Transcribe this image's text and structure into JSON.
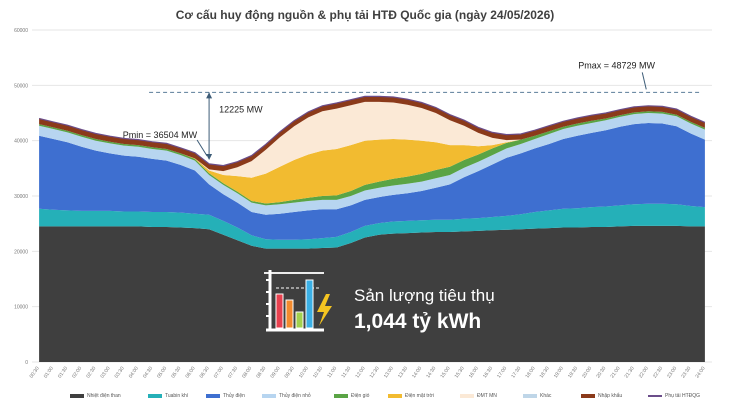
{
  "title": "Cơ cấu huy động nguồn & phụ tải HTĐ Quốc gia (ngày 24/05/2026)",
  "consumption": {
    "label": "Sản lượng tiêu thụ",
    "value": "1,044 tỷ kWh"
  },
  "annotations": {
    "pmin": "Pmin = 36504 MW",
    "pmax": "Pmax = 48729 MW",
    "delta": "12225 MW"
  },
  "colors": {
    "coal": "#3f3f3f",
    "gas": "#25b0b8",
    "hydro": "#3e6fd0",
    "small_hydro": "#b7d5f0",
    "wind": "#5aa445",
    "solar_farm": "#f2bb30",
    "rooftop_solar": "#fbe9d6",
    "other": "#bfd6e8",
    "import": "#8b3a1a",
    "load_line": "#6b4d8a"
  },
  "chart_data": {
    "type": "area",
    "stacked": true,
    "title": "Cơ cấu huy động nguồn & phụ tải HTĐ Quốc gia (ngày 24/05/2026)",
    "xlabel": "",
    "ylabel": "",
    "ylim": [
      0,
      60000
    ],
    "yticks": [
      0,
      10000,
      20000,
      30000,
      40000,
      50000,
      60000
    ],
    "grid": true,
    "legend_position": "bottom",
    "x": [
      "00:30",
      "01:00",
      "01:30",
      "02:00",
      "02:30",
      "03:00",
      "03:30",
      "04:00",
      "04:30",
      "05:00",
      "05:30",
      "06:00",
      "06:30",
      "07:00",
      "07:30",
      "08:00",
      "08:30",
      "09:00",
      "09:30",
      "10:00",
      "10:30",
      "11:00",
      "11:30",
      "12:00",
      "12:30",
      "13:00",
      "13:30",
      "14:00",
      "14:30",
      "15:00",
      "15:30",
      "16:00",
      "16:30",
      "17:00",
      "17:30",
      "18:00",
      "18:30",
      "19:00",
      "19:30",
      "20:00",
      "20:30",
      "21:00",
      "21:30",
      "22:00",
      "22:30",
      "23:00",
      "23:30",
      "24:00"
    ],
    "series": [
      {
        "name": "Nhiệt điện than",
        "color_key": "coal",
        "values": [
          24500,
          24500,
          24500,
          24500,
          24500,
          24500,
          24500,
          24500,
          24400,
          24400,
          24300,
          24200,
          24000,
          23000,
          22000,
          21000,
          20500,
          20500,
          20500,
          20500,
          20600,
          20700,
          21500,
          22500,
          23000,
          23200,
          23300,
          23400,
          23500,
          23500,
          23600,
          23700,
          23800,
          23900,
          24000,
          24100,
          24200,
          24300,
          24300,
          24400,
          24400,
          24500,
          24600,
          24600,
          24600,
          24600,
          24500,
          24500
        ]
      },
      {
        "name": "Tuabin khí",
        "color_key": "gas",
        "values": [
          3200,
          3000,
          2900,
          2800,
          2800,
          2800,
          2700,
          2700,
          2700,
          2700,
          2700,
          2600,
          2600,
          2500,
          2300,
          1900,
          1700,
          1600,
          1600,
          1700,
          1800,
          1900,
          2000,
          2100,
          2100,
          2200,
          2200,
          2200,
          2200,
          2200,
          2300,
          2300,
          2400,
          2500,
          2700,
          3000,
          3200,
          3400,
          3500,
          3600,
          3700,
          3800,
          3900,
          4000,
          4000,
          3900,
          3700,
          3500
        ]
      },
      {
        "name": "Thủy điện",
        "color_key": "hydro",
        "values": [
          13200,
          12800,
          12300,
          11600,
          10900,
          10400,
          10100,
          9900,
          9600,
          9300,
          8600,
          7800,
          5500,
          4800,
          4500,
          4200,
          4400,
          4700,
          5000,
          5200,
          5200,
          5000,
          4800,
          4700,
          4700,
          4800,
          5000,
          5300,
          5800,
          6400,
          7500,
          8500,
          9500,
          10500,
          11000,
          11500,
          12000,
          12600,
          13100,
          13400,
          13800,
          14200,
          14500,
          14600,
          14500,
          14100,
          13100,
          12200
        ]
      },
      {
        "name": "Thủy điện nhỏ",
        "color_key": "small_hydro",
        "values": [
          1800,
          1800,
          1800,
          1800,
          1800,
          1800,
          1800,
          1800,
          1800,
          1800,
          1800,
          1800,
          1700,
          1700,
          1700,
          1700,
          1700,
          1700,
          1700,
          1700,
          1700,
          1700,
          1700,
          1700,
          1700,
          1700,
          1700,
          1700,
          1700,
          1700,
          1700,
          1700,
          1700,
          1700,
          1700,
          1700,
          1800,
          1800,
          1800,
          1800,
          1800,
          1800,
          1800,
          1800,
          1800,
          1800,
          1800,
          1800
        ]
      },
      {
        "name": "Điện gió",
        "color_key": "wind",
        "values": [
          300,
          300,
          300,
          300,
          300,
          300,
          300,
          300,
          300,
          300,
          300,
          300,
          300,
          300,
          300,
          300,
          350,
          400,
          500,
          600,
          700,
          800,
          900,
          1000,
          1100,
          1200,
          1300,
          1400,
          1500,
          1500,
          1400,
          1300,
          1200,
          1000,
          800,
          600,
          500,
          400,
          400,
          400,
          300,
          300,
          300,
          300,
          300,
          300,
          300,
          300
        ]
      },
      {
        "name": "Điện mặt trời",
        "color_key": "solar_farm",
        "values": [
          0,
          0,
          0,
          0,
          0,
          0,
          0,
          0,
          0,
          0,
          0,
          100,
          500,
          1500,
          2800,
          4200,
          5400,
          6400,
          7200,
          7800,
          8200,
          8400,
          8300,
          8000,
          7600,
          7200,
          6700,
          6000,
          5000,
          3900,
          2700,
          1500,
          600,
          100,
          0,
          0,
          0,
          0,
          0,
          0,
          0,
          0,
          0,
          0,
          0,
          0,
          0,
          0
        ]
      },
      {
        "name": "ĐMT MN",
        "color_key": "rooftop_solar",
        "values": [
          0,
          0,
          0,
          0,
          0,
          0,
          0,
          0,
          0,
          0,
          0,
          0,
          200,
          700,
          1600,
          3000,
          4300,
          5300,
          6100,
          6700,
          7100,
          7300,
          7200,
          7000,
          6800,
          6600,
          6300,
          5900,
          5300,
          4500,
          3500,
          2400,
          1300,
          400,
          0,
          0,
          0,
          0,
          0,
          0,
          0,
          0,
          0,
          0,
          0,
          0,
          0,
          0
        ]
      },
      {
        "name": "Khác",
        "color_key": "other",
        "values": [
          0,
          0,
          0,
          0,
          0,
          0,
          0,
          0,
          0,
          0,
          0,
          0,
          0,
          0,
          0,
          0,
          0,
          0,
          0,
          0,
          0,
          0,
          0,
          0,
          0,
          0,
          0,
          0,
          0,
          0,
          0,
          0,
          0,
          0,
          0,
          0,
          0,
          0,
          0,
          0,
          0,
          0,
          0,
          0,
          0,
          0,
          0,
          0
        ]
      },
      {
        "name": "Nhập khẩu",
        "color_key": "import",
        "values": [
          1000,
          1000,
          1000,
          1000,
          1000,
          1000,
          1000,
          1000,
          1000,
          1000,
          1000,
          1000,
          1000,
          1000,
          1000,
          1000,
          1000,
          1000,
          1000,
          1000,
          1000,
          1000,
          1000,
          1000,
          1000,
          1000,
          1000,
          1000,
          1000,
          1000,
          1000,
          1000,
          1000,
          1000,
          1000,
          1000,
          1000,
          1000,
          1000,
          1000,
          1000,
          1000,
          1000,
          1000,
          1000,
          1000,
          1000,
          1000
        ]
      }
    ],
    "line_series": [
      {
        "name": "Phụ tải HTĐQG",
        "color_key": "load_line"
      }
    ],
    "annotations": [
      {
        "text": "Pmin = 36504 MW",
        "x": "06:30",
        "y": 36504
      },
      {
        "text": "Pmax = 48729 MW",
        "x": "22:00",
        "y": 48729
      },
      {
        "text": "12225 MW",
        "x": "06:30",
        "y": 48729
      }
    ]
  }
}
